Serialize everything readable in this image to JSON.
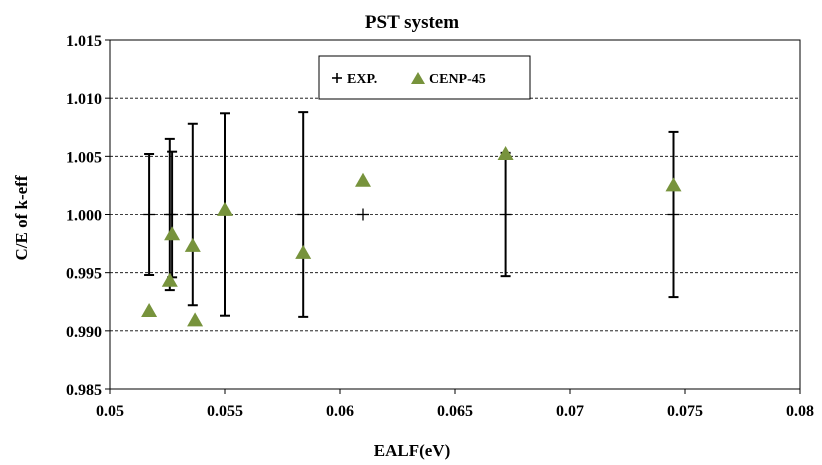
{
  "chart_data": {
    "type": "scatter",
    "title": "PST system",
    "xlabel": "EALF(eV)",
    "ylabel": "C/E of k-eff",
    "xlim": [
      0.05,
      0.08
    ],
    "ylim": [
      0.985,
      1.015
    ],
    "x_ticks": [
      "0.05",
      "0.055",
      "0.06",
      "0.065",
      "0.07",
      "0.075",
      "0.08"
    ],
    "y_ticks": [
      "0.985",
      "0.990",
      "0.995",
      "1.000",
      "1.005",
      "1.010",
      "1.015"
    ],
    "grid": "horizontal dashed",
    "legend_position": "top-center",
    "series": [
      {
        "name": "EXP.",
        "marker": "plus",
        "color": "#000000",
        "points": [
          {
            "x": 0.0517,
            "y": 1.0,
            "err": 0.0052
          },
          {
            "x": 0.0526,
            "y": 1.0,
            "err": 0.0065
          },
          {
            "x": 0.0527,
            "y": 1.0,
            "err": 0.0054
          },
          {
            "x": 0.0536,
            "y": 1.0,
            "err": 0.0078
          },
          {
            "x": 0.055,
            "y": 1.0,
            "err": 0.0087
          },
          {
            "x": 0.0584,
            "y": 1.0,
            "err": 0.0088
          },
          {
            "x": 0.061,
            "y": 1.0,
            "err": 0.0
          },
          {
            "x": 0.0672,
            "y": 1.0,
            "err": 0.0053
          },
          {
            "x": 0.0745,
            "y": 1.0,
            "err": 0.0071
          }
        ]
      },
      {
        "name": "CENP-45",
        "marker": "triangle",
        "color": "#77933c",
        "points": [
          {
            "x": 0.0517,
            "y": 0.9917
          },
          {
            "x": 0.0526,
            "y": 0.9943
          },
          {
            "x": 0.0527,
            "y": 0.9983
          },
          {
            "x": 0.0536,
            "y": 0.9973
          },
          {
            "x": 0.0537,
            "y": 0.9909
          },
          {
            "x": 0.055,
            "y": 1.0004
          },
          {
            "x": 0.0584,
            "y": 0.9967
          },
          {
            "x": 0.061,
            "y": 1.0029
          },
          {
            "x": 0.0672,
            "y": 1.0052
          },
          {
            "x": 0.0745,
            "y": 1.0025
          }
        ]
      }
    ]
  }
}
